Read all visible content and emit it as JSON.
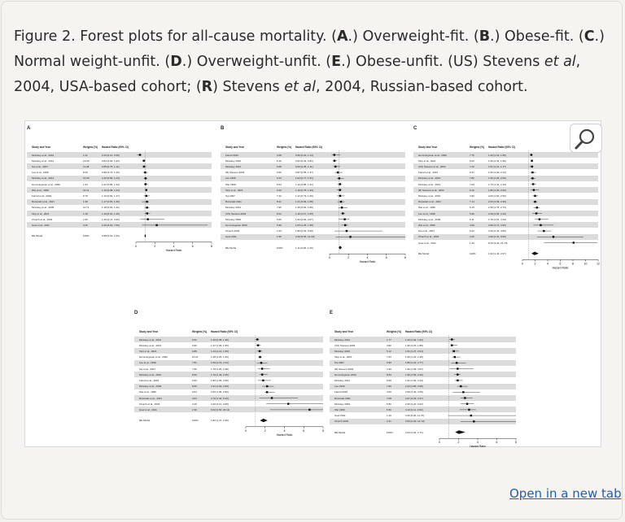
{
  "caption": {
    "figure_label": "Figure 2. Forest plots for all-cause mortality. (",
    "a": "A",
    "a_text": ".) Overweight-fit. (",
    "b": "B",
    "b_text": ".) Obese-fit. (",
    "c": "C",
    "c_text": ".) Normal weight-unfit. (",
    "d": "D",
    "d_text": ".) Overweight-unfit. (",
    "e": "E",
    "e_text": ".) Obese-unfit. (US) Stevens ",
    "etal1": "et al",
    "mid": ", 2004, USA-based cohort; (",
    "r": "R",
    "r_text": ") Stevens ",
    "etal2": "et al",
    "end": ", 2004, Russian-based cohort."
  },
  "open_link": "Open in a new tab",
  "icons": {
    "zoom": "magnifier-icon"
  },
  "table_headers": {
    "study": "Study and Year",
    "weight": "Weights (%)",
    "hr": "Hazard Ratio (95% CI)"
  },
  "axis_label": "Hazard Ratio",
  "panels": [
    {
      "id": "A",
      "rows": [
        {
          "study": "McAuley et al., 2010",
          "weight": "1.41",
          "hr": "0.43 [0.12, 0.59]",
          "est": 0.43,
          "lo": 0.12,
          "hi": 0.59
        },
        {
          "study": "McAuley et al., 2012",
          "weight": "13.60",
          "hr": "0.84 [0.69, 1.03]",
          "est": 0.84,
          "lo": 0.69,
          "hi": 1.03
        },
        {
          "study": "Sui et al., 2007",
          "weight": "11.28",
          "hr": "0.85 [0.75, 1.11]",
          "est": 0.85,
          "lo": 0.75,
          "hi": 1.11
        },
        {
          "study": "Lee et al., 1999",
          "weight": "8.40",
          "hr": "0.98 [0.73, 1.26]",
          "est": 0.98,
          "lo": 0.73,
          "hi": 1.26
        },
        {
          "study": "McAuley et al., 2014",
          "weight": "10.09",
          "hr": "1.02 [0.84, 1.23]",
          "est": 1.02,
          "lo": 0.84,
          "hi": 1.23
        },
        {
          "study": "Hemmingsson et al., 2020",
          "weight": "1.63",
          "hr": "1.02 [0.85, 1.24]",
          "est": 1.02,
          "lo": 0.85,
          "hi": 1.24
        },
        {
          "study": "Wei et al., 1999",
          "weight": "21.11",
          "hr": "1.10 [0.98, 1.23]",
          "est": 1.1,
          "lo": 0.98,
          "hi": 1.23
        },
        {
          "study": "Farrell et al., 2004",
          "weight": "9.79",
          "hr": "1.10 [0.83, 1.47]",
          "est": 1.1,
          "lo": 0.83,
          "hi": 1.47
        },
        {
          "study": "Rozanski et al., 2021",
          "weight": "1.39",
          "hr": "1.17 [0.65, 1.39]",
          "est": 1.17,
          "lo": 0.65,
          "hi": 1.39
        },
        {
          "study": "McAuley et al., 2009",
          "weight": "12.71",
          "hr": "1.18 [0.93, 1.42]",
          "est": 1.18,
          "lo": 0.93,
          "hi": 1.42
        },
        {
          "study": "Tarp et al., 2021",
          "weight": "1.18",
          "hr": "1.19 [0.91, 1.49]",
          "est": 1.19,
          "lo": 0.91,
          "hi": 1.49
        },
        {
          "study": "Church et al., 2004",
          "weight": "1.05",
          "hr": "1.26 [0.47, 3.00]",
          "est": 1.26,
          "lo": 0.47,
          "hi": 3.0
        },
        {
          "study": "Goel et al., 2011",
          "weight": "3.40",
          "hr": "2.20 [0.64, 7.59]",
          "est": 2.2,
          "lo": 0.64,
          "hi": 7.59
        }
      ],
      "summary": {
        "study": "RE Model",
        "weight": "100%",
        "hr": "0.98 [0.91, 1.06]",
        "est": 0.98,
        "lo": 0.91,
        "hi": 1.06
      },
      "ticks": [
        "0",
        "2",
        "4",
        "6",
        "8"
      ],
      "xmax": 8
    },
    {
      "id": "B",
      "rows": [
        {
          "study": "Farrell 2010",
          "weight": "3.28",
          "hr": "0.50 [0.22, 1.13]",
          "est": 0.5,
          "lo": 0.22,
          "hi": 1.13
        },
        {
          "study": "McAuley 2010",
          "weight": "6.16",
          "hr": "0.52 [0.33, 0.81]",
          "est": 0.52,
          "lo": 0.33,
          "hi": 0.81
        },
        {
          "study": "McAuley 2012",
          "weight": "6.68",
          "hr": "0.62 [0.35, 1.11]",
          "est": 0.62,
          "lo": 0.35,
          "hi": 1.11
        },
        {
          "study": "(R) Stevens 2004",
          "weight": "6.56",
          "hr": "0.87 [0.55, 1.37]",
          "est": 0.87,
          "lo": 0.55,
          "hi": 1.37
        },
        {
          "study": "Lee 1999",
          "weight": "6.23",
          "hr": "1.02 [0.77, 1.51]",
          "est": 1.02,
          "lo": 0.77,
          "hi": 1.51
        },
        {
          "study": "Wei 1999",
          "weight": "9.54",
          "hr": "1.10 [0.85, 1.31]",
          "est": 1.1,
          "lo": 0.85,
          "hi": 1.31
        },
        {
          "study": "Tarp et al., 2021",
          "weight": "3.29",
          "hr": "1.10 [0.75, 1.29]",
          "est": 1.1,
          "lo": 0.75,
          "hi": 1.29
        },
        {
          "study": "Sui 2007",
          "weight": "7.42",
          "hr": "1.12 [0.79, 1.60]",
          "est": 1.12,
          "lo": 0.79,
          "hi": 1.6
        },
        {
          "study": "Rozanski 2021",
          "weight": "8.41",
          "hr": "1.21 [0.84, 1.58]",
          "est": 1.21,
          "lo": 0.84,
          "hi": 1.58
        },
        {
          "study": "McAuley 2014",
          "weight": "7.96",
          "hr": "1.30 [0.92, 1.89]",
          "est": 1.3,
          "lo": 0.92,
          "hi": 1.89
        },
        {
          "study": "(US) Stevens 2004",
          "weight": "8.22",
          "hr": "1.40 [1.17, 1.65]",
          "est": 1.4,
          "lo": 1.17,
          "hi": 1.65
        },
        {
          "study": "McAuley 2009",
          "weight": "5.65",
          "hr": "1.60 [0.93, 2.07]",
          "est": 1.6,
          "lo": 0.93,
          "hi": 2.07
        },
        {
          "study": "Hemmingsson 2020",
          "weight": "5.99",
          "hr": "1.65 [1.25, 1.98]",
          "est": 1.65,
          "lo": 1.25,
          "hi": 1.98
        },
        {
          "study": "Church 2004",
          "weight": "1.02",
          "hr": "1.80 [0.53, 5.60]",
          "est": 1.8,
          "lo": 0.53,
          "hi": 5.6
        },
        {
          "study": "Goel 2011",
          "weight": "1.55",
          "hr": "2.20 [0.66, 14.33]",
          "est": 2.2,
          "lo": 0.66,
          "hi": 14.33
        }
      ],
      "summary": {
        "study": "RE Model",
        "weight": "100%",
        "hr": "1.11 [0.96, 1.30]",
        "est": 1.11,
        "lo": 0.96,
        "hi": 1.3
      },
      "ticks": [
        "0",
        "2",
        "4",
        "6",
        "8"
      ],
      "xmax": 8
    },
    {
      "id": "C",
      "rows": [
        {
          "study": "Hemmingsson et al., 2020",
          "weight": "7.75",
          "hr": "1.40 [1.19, 1.65]",
          "est": 1.4,
          "lo": 1.19,
          "hi": 1.65
        },
        {
          "study": "Tarp et al., 2021",
          "weight": "6.20",
          "hr": "1.50 [1.31, 1.65]",
          "est": 1.5,
          "lo": 1.31,
          "hi": 1.65
        },
        {
          "study": "(US) Stevens et al., 2004",
          "weight": "7.42",
          "hr": "1.51 [1.12, 1.77]",
          "est": 1.51,
          "lo": 1.12,
          "hi": 1.77
        },
        {
          "study": "Farrell et al., 2010",
          "weight": "6.37",
          "hr": "1.60 [1.20, 2.13]",
          "est": 1.6,
          "lo": 1.2,
          "hi": 2.13
        },
        {
          "study": "McAuley et al., 2012",
          "weight": "7.82",
          "hr": "1.60 [1.26, 2.06]",
          "est": 1.6,
          "lo": 1.26,
          "hi": 2.06
        },
        {
          "study": "McAuley et al., 2014",
          "weight": "7.69",
          "hr": "1.70 [1.32, 2.19]",
          "est": 1.7,
          "lo": 1.32,
          "hi": 2.19
        },
        {
          "study": "(R) Stevens et al., 2004",
          "weight": "6.16",
          "hr": "1.80 [1.32, 2.63]",
          "est": 1.8,
          "lo": 1.32,
          "hi": 2.63
        },
        {
          "study": "McAuley et al., 2010",
          "weight": "3.90",
          "hr": "2.00 [1.60, 2.50]",
          "est": 2.0,
          "lo": 1.6,
          "hi": 2.5
        },
        {
          "study": "Rozanski et al., 2021",
          "weight": "7.14",
          "hr": "2.00 [1.69, 2.36]",
          "est": 2.0,
          "lo": 1.69,
          "hi": 2.36
        },
        {
          "study": "Wei et al., 1999",
          "weight": "6.19",
          "hr": "2.30 [1.76, 2.74]",
          "est": 2.3,
          "lo": 1.76,
          "hi": 2.74
        },
        {
          "study": "Lee et al., 1998",
          "weight": "5.99",
          "hr": "2.20 [1.54, 3.10]",
          "est": 2.2,
          "lo": 1.54,
          "hi": 3.1
        },
        {
          "study": "McAuley et al., 2009",
          "weight": "6.11",
          "hr": "2.70 [1.97, 4.10]",
          "est": 2.7,
          "lo": 1.97,
          "hi": 4.1
        },
        {
          "study": "Wei et al., 2006",
          "weight": "4.99",
          "hr": "2.90 [1.71, 4.93]",
          "est": 2.9,
          "lo": 1.71,
          "hi": 4.93
        },
        {
          "study": "Sui et al., 2007",
          "weight": "6.22",
          "hr": "3.40 [2.41, 4.56]",
          "est": 3.4,
          "lo": 2.41,
          "hi": 4.56
        },
        {
          "study": "Church et al., 2004",
          "weight": "3.25",
          "hr": "4.90 [2.31, 9.66]",
          "est": 4.9,
          "lo": 2.31,
          "hi": 9.66
        },
        {
          "study": "Goel et al., 2011",
          "weight": "1.40",
          "hr": "8.10 [3.40, 21.70]",
          "est": 8.1,
          "lo": 3.4,
          "hi": 11.9
        }
      ],
      "summary": {
        "study": "RE Model",
        "weight": "100%",
        "hr": "1.93 [1.43, 2.57]",
        "est": 1.93,
        "lo": 1.43,
        "hi": 2.57
      },
      "ticks": [
        "0",
        "2",
        "4",
        "6",
        "8",
        "10",
        "12"
      ],
      "xmax": 12
    },
    {
      "id": "D",
      "rows": [
        {
          "study": "McAuley et al., 2012",
          "weight": "9.52",
          "hr": "1.20 [0.98, 1.38]",
          "est": 1.2,
          "lo": 0.98,
          "hi": 1.38
        },
        {
          "study": "McAuley et al., 2014",
          "weight": "9.90",
          "hr": "1.27 [1.06, 1.55]",
          "est": 1.27,
          "lo": 1.06,
          "hi": 1.55
        },
        {
          "study": "Tarp et al., 2021",
          "weight": "9.85",
          "hr": "1.44 [1.14, 1.69]",
          "est": 1.44,
          "lo": 1.14,
          "hi": 1.69
        },
        {
          "study": "Hemmingsson et al., 2020",
          "weight": "10.21",
          "hr": "1.48 [1.26, 1.69]",
          "est": 1.48,
          "lo": 1.26,
          "hi": 1.69
        },
        {
          "study": "Lee et al., 1999",
          "weight": "7.81",
          "hr": "1.60 [1.15, 2.23]",
          "est": 1.6,
          "lo": 1.15,
          "hi": 2.23
        },
        {
          "study": "Sui et al., 2007",
          "weight": "7.56",
          "hr": "1.70 [1.25, 2.48]",
          "est": 1.7,
          "lo": 1.25,
          "hi": 2.48
        },
        {
          "study": "McAuley et al., 2010",
          "weight": "8.53",
          "hr": "1.70 [1.43, 2.25]",
          "est": 1.7,
          "lo": 1.43,
          "hi": 2.25
        },
        {
          "study": "Farrell et al., 2010",
          "weight": "6.60",
          "hr": "1.80 [1.25, 2.59]",
          "est": 1.8,
          "lo": 1.25,
          "hi": 2.59
        },
        {
          "study": "McAuley et al., 2009",
          "weight": "8.60",
          "hr": "2.21 [1.69, 2.89]",
          "est": 2.21,
          "lo": 1.69,
          "hi": 2.89
        },
        {
          "study": "Wei et al., 1999",
          "weight": "9.54",
          "hr": "2.20 [1.95, 2.99]",
          "est": 2.2,
          "lo": 1.95,
          "hi": 2.99
        },
        {
          "study": "Rozanski et al., 2021",
          "weight": "4.64",
          "hr": "2.70 [1.40, 5.40]",
          "est": 2.7,
          "lo": 1.4,
          "hi": 5.4
        },
        {
          "study": "Church et al., 2004",
          "weight": "4.20",
          "hr": "4.40 [2.13, 9.05]",
          "est": 4.4,
          "lo": 2.13,
          "hi": 9.05
        },
        {
          "study": "Goel et al., 2011",
          "weight": "2.30",
          "hr": "6.60 [2.50, 20.11]",
          "est": 6.6,
          "lo": 2.5,
          "hi": 9.0
        }
      ],
      "summary": {
        "study": "RE Model",
        "weight": "100%",
        "hr": "1.82 [1.47, 2.26]",
        "est": 1.82,
        "lo": 1.47,
        "hi": 2.26
      },
      "ticks": [
        "0",
        "2",
        "4",
        "6",
        "8"
      ],
      "xmax": 8
    },
    {
      "id": "E",
      "rows": [
        {
          "study": "McAuley 2012",
          "weight": "1.77",
          "hr": "1.30 [1.00, 1.60]",
          "est": 1.3,
          "lo": 1.0,
          "hi": 1.6
        },
        {
          "study": "(US) Stevens 2004",
          "weight": "3.82",
          "hr": "1.30 [1.15, 1.89]",
          "est": 1.3,
          "lo": 1.15,
          "hi": 1.89
        },
        {
          "study": "McAuley 2010",
          "weight": "5.12",
          "hr": "1.51 [1.27, 2.04]",
          "est": 1.51,
          "lo": 1.27,
          "hi": 2.04
        },
        {
          "study": "Tarp et al., 2021",
          "weight": "7.53",
          "hr": "1.60 [1.32, 2.18]",
          "est": 1.6,
          "lo": 1.32,
          "hi": 2.18
        },
        {
          "study": "Sui 2007",
          "weight": "5.99",
          "hr": "1.80 [1.22, 2.77]",
          "est": 1.8,
          "lo": 1.22,
          "hi": 2.77
        },
        {
          "study": "(R) Stevens 2004",
          "weight": "2.39",
          "hr": "1.90 [1.09, 3.57]",
          "est": 1.9,
          "lo": 1.09,
          "hi": 3.57
        },
        {
          "study": "Hemmingsson 2020",
          "weight": "8.50",
          "hr": "1.90 [1.56, 2.20]",
          "est": 1.9,
          "lo": 1.56,
          "hi": 2.2
        },
        {
          "study": "McAuley 2014",
          "weight": "6.09",
          "hr": "1.91 [1.60, 2.44]",
          "est": 1.91,
          "lo": 1.6,
          "hi": 2.44
        },
        {
          "study": "Lee 1999",
          "weight": "7.66",
          "hr": "2.24 [1.85, 2.95]",
          "est": 2.24,
          "lo": 1.85,
          "hi": 2.95
        },
        {
          "study": "Farrell 2010",
          "weight": "4.60",
          "hr": "2.50 [1.40, 4.25]",
          "est": 2.5,
          "lo": 1.4,
          "hi": 4.25
        },
        {
          "study": "Rozanski 2021",
          "weight": "7.68",
          "hr": "2.67 [2.20, 3.47]",
          "est": 2.67,
          "lo": 2.2,
          "hi": 3.47
        },
        {
          "study": "McAuley 2009",
          "weight": "5.80",
          "hr": "2.90 [2.20, 3.62]",
          "est": 2.9,
          "lo": 2.2,
          "hi": 3.62
        },
        {
          "study": "Wei 1999",
          "weight": "5.59",
          "hr": "3.10 [2.11, 3.82]",
          "est": 3.1,
          "lo": 2.11,
          "hi": 3.82
        },
        {
          "study": "Goel 2011",
          "weight": "1.40",
          "hr": "3.30 [0.90, 11.37]",
          "est": 3.3,
          "lo": 0.9,
          "hi": 8.0
        },
        {
          "study": "Church 2004",
          "weight": "2.41",
          "hr": "3.60 [2.20, 12.72]",
          "est": 3.6,
          "lo": 2.2,
          "hi": 8.0
        }
      ],
      "summary": {
        "study": "RE Model",
        "weight": "100%",
        "hr": "2.04 [1.64, 2.71]",
        "est": 2.04,
        "lo": 1.64,
        "hi": 2.71
      },
      "ticks": [
        "0",
        "2",
        "4",
        "6",
        "8"
      ],
      "xmax": 8
    }
  ]
}
